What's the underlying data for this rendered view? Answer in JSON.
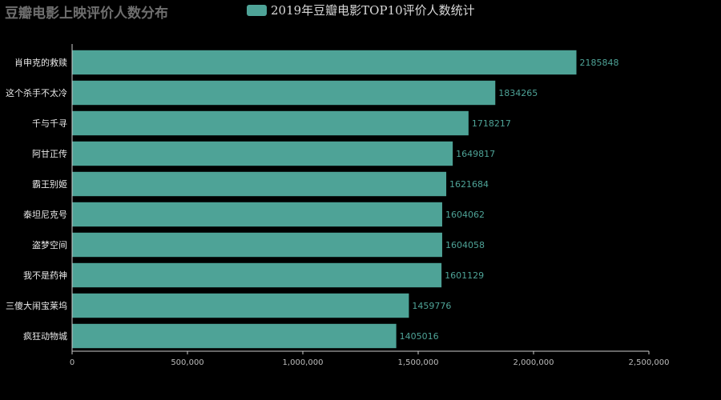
{
  "title": "豆瓣电影上映评价人数分布",
  "chart_data": {
    "type": "bar",
    "orientation": "horizontal",
    "series": [
      {
        "name": "2019年豆瓣电影TOP10评价人数统计",
        "color": "#4ea397"
      }
    ],
    "categories": [
      "肖申克的救赎",
      "这个杀手不太冷",
      "千与千寻",
      "阿甘正传",
      "霸王别姬",
      "泰坦尼克号",
      "盗梦空间",
      "我不是药神",
      "三傻大闹宝莱坞",
      "疯狂动物城"
    ],
    "values": [
      2185848,
      1834265,
      1718217,
      1649817,
      1621684,
      1604062,
      1604058,
      1601129,
      1459776,
      1405016
    ],
    "xlim": [
      0,
      2500000
    ],
    "xticks": [
      0,
      500000,
      1000000,
      1500000,
      2000000,
      2500000
    ],
    "xtick_labels": [
      "0",
      "500,000",
      "1,000,000",
      "1,500,000",
      "2,000,000",
      "2,500,000"
    ],
    "legend_position": "top",
    "grid": false
  },
  "colors": {
    "bar": "#4ea397",
    "axis": "#cccccc",
    "category_label": "#e8e8e8",
    "value_label": "#4ea397",
    "tick_label": "#bbbbbb"
  }
}
